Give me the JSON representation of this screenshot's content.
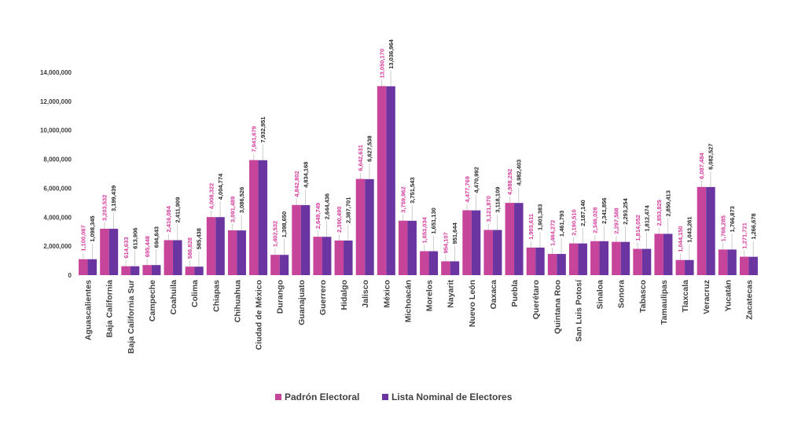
{
  "chart_data": {
    "type": "bar",
    "title": "",
    "xlabel": "",
    "ylabel": "",
    "ylim": [
      0,
      14000000
    ],
    "yticks": [
      "0",
      "2,000,000",
      "4,000,000",
      "6,000,000",
      "8,000,000",
      "10,000,000",
      "12,000,000",
      "14,000,000"
    ],
    "yticks_values": [
      0,
      2000000,
      4000000,
      6000000,
      8000000,
      10000000,
      12000000,
      14000000
    ],
    "grid": false,
    "legend_position": "bottom",
    "categories": [
      "Aguascalientes",
      "Baja California",
      "Baja California Sur",
      "Campeche",
      "Coahuila",
      "Colima",
      "Chiapas",
      "Chihuahua",
      "Ciudad de México",
      "Durango",
      "Guanajuato",
      "Guerrero",
      "Hidalgo",
      "Jalisco",
      "México",
      "Michoacán",
      "Morelos",
      "Nayarit",
      "Nuevo León",
      "Oaxaca",
      "Puebla",
      "Querétaro",
      "Quintana Roo",
      "San Luis Potosí",
      "Sinaloa",
      "Sonora",
      "Tabasco",
      "Tamaulipas",
      "Tlaxcala",
      "Veracruz",
      "Yucatán",
      "Zacatecas"
    ],
    "series": [
      {
        "name": "Padrón Electoral",
        "color": "#c6449a",
        "label_color": "#d4399a",
        "values": [
          1100087,
          3203532,
          614633,
          695448,
          2416084,
          586828,
          4008322,
          3091489,
          7941679,
          1402532,
          4842802,
          2649749,
          2390490,
          6642631,
          13050170,
          3759962,
          1653034,
          954107,
          4477769,
          3121870,
          4988292,
          1903611,
          1464272,
          2190510,
          2346028,
          2297588,
          1814052,
          2853825,
          1044150,
          6087484,
          1768285,
          1271721
        ],
        "labels": [
          "1,100,087",
          "3,203,532",
          "614,633",
          "695,448",
          "2,416,084",
          "586,828",
          "4,008,322",
          "3,091,489",
          "7,941,679",
          "1,402,532",
          "4,842,802",
          "2,649,749",
          "2,390,490",
          "6,642,631",
          "13,050,170",
          "3,759,962",
          "1,653,034",
          "954,107",
          "4,477,769",
          "3,121,870",
          "4,988,292",
          "1,903,611",
          "1,464,272",
          "2,190,510",
          "2,346,028",
          "2,297,588",
          "1,814,052",
          "2,853,825",
          "1,044,150",
          "6,087,484",
          "1,768,285",
          "1,271,721"
        ]
      },
      {
        "name": "Lista Nominal de Electores",
        "color": "#6a35a0",
        "label_color": "#262626",
        "values": [
          1098345,
          3199439,
          613906,
          694843,
          2411909,
          585438,
          4004774,
          3086526,
          7932951,
          1398650,
          4834168,
          2644436,
          2387701,
          6627538,
          13036964,
          3751543,
          1651130,
          951644,
          4470992,
          3118109,
          4982403,
          1901383,
          1461793,
          2187140,
          2341856,
          2293254,
          1812474,
          2850413,
          1043261,
          6082527,
          1766873,
          1266678
        ],
        "labels": [
          "1,098,345",
          "3,199,439",
          "613,906",
          "694,843",
          "2,411,909",
          "585,438",
          "4,004,774",
          "3,086,526",
          "7,932,951",
          "1,398,650",
          "4,834,168",
          "2,644,436",
          "2,387,701",
          "6,627,538",
          "13,036,964",
          "3,751,543",
          "1,651,130",
          "951,644",
          "4,470,992",
          "3,118,109",
          "4,982,403",
          "1,901,383",
          "1,461,793",
          "2,187,140",
          "2,341,856",
          "2,293,254",
          "1,812,474",
          "2,850,413",
          "1,043,261",
          "6,082,527",
          "1,766,873",
          "1,266,678"
        ]
      }
    ]
  }
}
